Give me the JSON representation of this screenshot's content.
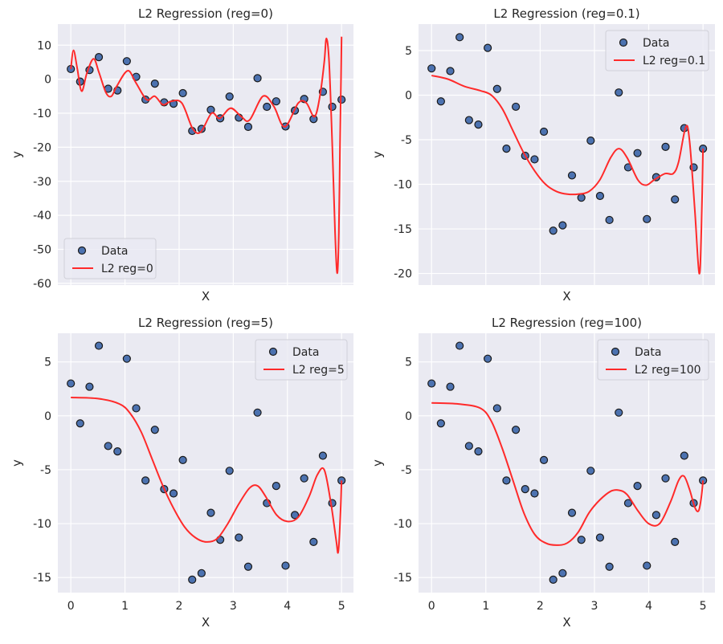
{
  "chart_data": [
    {
      "type": "scatter+line",
      "title": "L2 Regression (reg=0)",
      "xlabel": "X",
      "ylabel": "y",
      "xlim": [
        -0.24,
        5.22
      ],
      "ylim": [
        -60.5,
        16.2
      ],
      "xticks": [],
      "yticks": [
        10,
        0,
        -10,
        -20,
        -30,
        -40,
        -50,
        -60
      ],
      "grid": true,
      "legend": "bottom-left",
      "series": [
        {
          "name": "Data",
          "kind": "scatter",
          "color": "#4C72B0"
        },
        {
          "name": "L2 reg=0",
          "kind": "line",
          "color": "#FF2A2A",
          "x": [
            0,
            0.05,
            0.12,
            0.2,
            0.3,
            0.42,
            0.52,
            0.65,
            0.75,
            0.85,
            1.05,
            1.2,
            1.4,
            1.55,
            1.7,
            1.85,
            2.05,
            2.25,
            2.4,
            2.6,
            2.75,
            2.95,
            3.15,
            3.3,
            3.55,
            3.75,
            3.95,
            4.2,
            4.35,
            4.5,
            4.6,
            4.68,
            4.72,
            4.77,
            4.83,
            4.88,
            4.92,
            4.95,
            4.97,
            4.99,
            5
          ],
          "y": [
            3,
            8.5,
            3,
            -3.5,
            2,
            6,
            2,
            -4,
            -5,
            -2,
            2.5,
            -1,
            -6,
            -5,
            -7.5,
            -6.5,
            -7,
            -14.5,
            -15.5,
            -10,
            -11.5,
            -8.5,
            -11,
            -12,
            -5,
            -8,
            -14,
            -7,
            -7,
            -11,
            -5,
            5,
            12,
            5,
            -20,
            -45,
            -57,
            -45,
            -20,
            0,
            12.5
          ]
        }
      ]
    },
    {
      "type": "scatter+line",
      "title": "L2 Regression (reg=0.1)",
      "xlabel": "X",
      "ylabel": "y",
      "xlim": [
        -0.24,
        5.22
      ],
      "ylim": [
        -21.3,
        7.97
      ],
      "xticks": [],
      "yticks": [
        5,
        0,
        -5,
        -10,
        -15,
        -20
      ],
      "grid": true,
      "legend": "top-right",
      "series": [
        {
          "name": "Data",
          "kind": "scatter",
          "color": "#4C72B0"
        },
        {
          "name": "L2 reg=0.1",
          "kind": "line",
          "color": "#FF2A2A",
          "x": [
            0,
            0.3,
            0.6,
            0.9,
            1.1,
            1.3,
            1.5,
            1.7,
            1.9,
            2.1,
            2.3,
            2.5,
            2.7,
            2.9,
            3.1,
            3.3,
            3.45,
            3.6,
            3.8,
            3.95,
            4.1,
            4.3,
            4.45,
            4.55,
            4.68,
            4.75,
            4.85,
            4.93,
            4.97,
            5
          ],
          "y": [
            2.2,
            1.8,
            1,
            0.5,
            0,
            -1.5,
            -4,
            -6.5,
            -8.5,
            -10,
            -10.8,
            -11.1,
            -11.1,
            -10.8,
            -9.5,
            -7,
            -6,
            -7,
            -9.5,
            -10.1,
            -9.5,
            -8.8,
            -8.8,
            -7.5,
            -3.6,
            -5,
            -13,
            -20,
            -15,
            -6
          ]
        }
      ]
    },
    {
      "type": "scatter+line",
      "title": "L2 Regression (reg=5)",
      "xlabel": "X",
      "ylabel": "y",
      "xlim": [
        -0.24,
        5.22
      ],
      "ylim": [
        -16.4,
        7.66
      ],
      "xticks": [
        0,
        1,
        2,
        3,
        4,
        5
      ],
      "yticks": [
        5,
        0,
        -5,
        -10,
        -15
      ],
      "grid": true,
      "legend": "top-right",
      "series": [
        {
          "name": "Data",
          "kind": "scatter",
          "color": "#4C72B0"
        },
        {
          "name": "L2 reg=5",
          "kind": "line",
          "color": "#FF2A2A",
          "x": [
            0,
            0.5,
            0.9,
            1.1,
            1.3,
            1.5,
            1.7,
            1.9,
            2.1,
            2.3,
            2.5,
            2.7,
            2.9,
            3.1,
            3.3,
            3.45,
            3.6,
            3.8,
            4,
            4.2,
            4.4,
            4.55,
            4.68,
            4.8,
            4.9,
            4.94,
            4.98,
            5
          ],
          "y": [
            1.7,
            1.6,
            1.1,
            0.2,
            -1.5,
            -4,
            -6.5,
            -8.6,
            -10.3,
            -11.3,
            -11.7,
            -11.4,
            -10,
            -8.2,
            -6.7,
            -6.5,
            -7.5,
            -9.2,
            -9.8,
            -9.4,
            -7.5,
            -5.5,
            -5,
            -8,
            -11.5,
            -12.6,
            -9,
            -6
          ]
        }
      ]
    },
    {
      "type": "scatter+line",
      "title": "L2 Regression (reg=100)",
      "xlabel": "X",
      "ylabel": "y",
      "xlim": [
        -0.24,
        5.22
      ],
      "ylim": [
        -16.4,
        7.66
      ],
      "xticks": [
        0,
        1,
        2,
        3,
        4,
        5
      ],
      "yticks": [
        5,
        0,
        -5,
        -10,
        -15
      ],
      "grid": true,
      "legend": "top-right",
      "series": [
        {
          "name": "Data",
          "kind": "scatter",
          "color": "#4C72B0"
        },
        {
          "name": "L2 reg=100",
          "kind": "line",
          "color": "#FF2A2A",
          "x": [
            0,
            0.5,
            0.9,
            1.1,
            1.3,
            1.5,
            1.7,
            1.9,
            2.1,
            2.3,
            2.5,
            2.7,
            2.9,
            3.1,
            3.3,
            3.45,
            3.6,
            3.8,
            4,
            4.2,
            4.4,
            4.55,
            4.65,
            4.75,
            4.85,
            4.92,
            4.97,
            5
          ],
          "y": [
            1.2,
            1.1,
            0.7,
            -0.5,
            -3,
            -6,
            -9,
            -11,
            -11.8,
            -12,
            -11.8,
            -10.8,
            -9,
            -7.8,
            -7,
            -6.9,
            -7.3,
            -8.8,
            -10,
            -10,
            -8,
            -6,
            -5.6,
            -6.8,
            -8.5,
            -8.8,
            -7.5,
            -6
          ]
        }
      ]
    }
  ],
  "scatter_points": {
    "x": [
      0,
      0.172,
      0.345,
      0.517,
      0.69,
      0.862,
      1.034,
      1.207,
      1.379,
      1.552,
      1.724,
      1.897,
      2.069,
      2.241,
      2.414,
      2.586,
      2.759,
      2.931,
      3.103,
      3.276,
      3.448,
      3.621,
      3.793,
      3.966,
      4.138,
      4.31,
      4.483,
      4.655,
      4.828,
      5
    ],
    "y": [
      3.0,
      -0.7,
      2.7,
      6.5,
      -2.8,
      -3.3,
      5.3,
      0.7,
      -6.0,
      -1.3,
      -6.8,
      -7.2,
      -4.1,
      -15.2,
      -14.6,
      -9.0,
      -11.5,
      -5.1,
      -11.3,
      -14.0,
      0.3,
      -8.1,
      -6.5,
      -13.9,
      -9.2,
      -5.8,
      -11.7,
      -3.7,
      -8.1,
      -6.0
    ]
  }
}
